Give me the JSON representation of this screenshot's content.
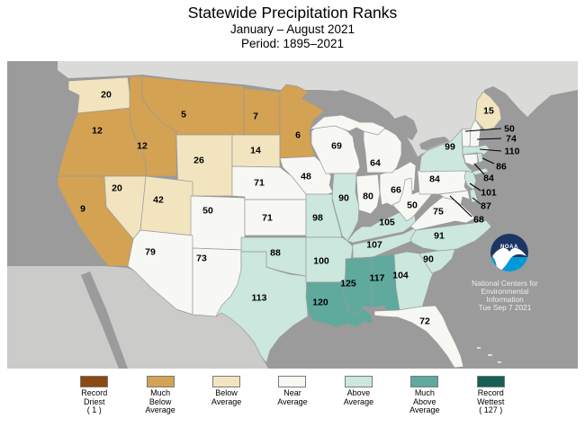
{
  "header": {
    "title": "Statewide Precipitation Ranks",
    "subtitle": "January – August 2021",
    "period": "Period: 1895–2021"
  },
  "colors": {
    "record_driest": "#8A4A10",
    "much_below": "#D3A253",
    "below": "#F2E4BE",
    "near": "#F7F7F4",
    "above": "#CBE7DE",
    "much_above": "#5FAA9C",
    "record_wettest": "#156156",
    "ocean": "#9B9B9B",
    "canada": "#DADAD8",
    "mexico": "#CBCBC9",
    "border": "#9A9A9A",
    "callout_line": "#000000"
  },
  "legend": {
    "items": [
      {
        "category": "record_driest",
        "color": "#8A4A10",
        "label_lines": [
          "Record",
          "Driest",
          "( 1 )"
        ]
      },
      {
        "category": "much_below",
        "color": "#D3A253",
        "label_lines": [
          "Much",
          "Below",
          "Average"
        ]
      },
      {
        "category": "below",
        "color": "#F2E4BE",
        "label_lines": [
          "Below",
          "Average"
        ]
      },
      {
        "category": "near",
        "color": "#F7F7F4",
        "label_lines": [
          "Near",
          "Average"
        ]
      },
      {
        "category": "above",
        "color": "#CBE7DE",
        "label_lines": [
          "Above",
          "Average"
        ]
      },
      {
        "category": "much_above",
        "color": "#5FAA9C",
        "label_lines": [
          "Much",
          "Above",
          "Average"
        ]
      },
      {
        "category": "record_wettest",
        "color": "#156156",
        "label_lines": [
          "Record",
          "Wettest",
          "( 127 )"
        ]
      }
    ]
  },
  "logo": {
    "acronym": "NOAA",
    "lines": [
      "National Centers for",
      "Environmental",
      "Information",
      "Tue Sep 7 2021"
    ]
  },
  "map": {
    "states": {
      "WA": {
        "name": "Washington",
        "rank": 20,
        "category": "below"
      },
      "OR": {
        "name": "Oregon",
        "rank": 12,
        "category": "much_below"
      },
      "CA": {
        "name": "California",
        "rank": 9,
        "category": "much_below"
      },
      "NV": {
        "name": "Nevada",
        "rank": 20,
        "category": "below"
      },
      "ID": {
        "name": "Idaho",
        "rank": 12,
        "category": "much_below"
      },
      "MT": {
        "name": "Montana",
        "rank": 5,
        "category": "much_below"
      },
      "WY": {
        "name": "Wyoming",
        "rank": 26,
        "category": "below"
      },
      "UT": {
        "name": "Utah",
        "rank": 42,
        "category": "below"
      },
      "CO": {
        "name": "Colorado",
        "rank": 50,
        "category": "near"
      },
      "AZ": {
        "name": "Arizona",
        "rank": 79,
        "category": "near"
      },
      "NM": {
        "name": "New Mexico",
        "rank": 73,
        "category": "near"
      },
      "ND": {
        "name": "North Dakota",
        "rank": 7,
        "category": "much_below"
      },
      "SD": {
        "name": "South Dakota",
        "rank": 14,
        "category": "below"
      },
      "NE": {
        "name": "Nebraska",
        "rank": 71,
        "category": "near"
      },
      "KS": {
        "name": "Kansas",
        "rank": 71,
        "category": "near"
      },
      "OK": {
        "name": "Oklahoma",
        "rank": 88,
        "category": "above"
      },
      "TX": {
        "name": "Texas",
        "rank": 113,
        "category": "above"
      },
      "MN": {
        "name": "Minnesota",
        "rank": 6,
        "category": "much_below"
      },
      "IA": {
        "name": "Iowa",
        "rank": 48,
        "category": "near"
      },
      "MO": {
        "name": "Missouri",
        "rank": 98,
        "category": "above"
      },
      "AR": {
        "name": "Arkansas",
        "rank": 100,
        "category": "above"
      },
      "LA": {
        "name": "Louisiana",
        "rank": 120,
        "category": "much_above"
      },
      "WI": {
        "name": "Wisconsin",
        "rank": 69,
        "category": "near"
      },
      "IL": {
        "name": "Illinois",
        "rank": 90,
        "category": "above"
      },
      "MS": {
        "name": "Mississippi",
        "rank": 125,
        "category": "much_above"
      },
      "MI": {
        "name": "Michigan",
        "rank": 64,
        "category": "near"
      },
      "IN": {
        "name": "Indiana",
        "rank": 80,
        "category": "near"
      },
      "OH": {
        "name": "Ohio",
        "rank": 66,
        "category": "near"
      },
      "KY": {
        "name": "Kentucky",
        "rank": 105,
        "category": "above"
      },
      "TN": {
        "name": "Tennessee",
        "rank": 107,
        "category": "above"
      },
      "AL": {
        "name": "Alabama",
        "rank": 117,
        "category": "much_above"
      },
      "GA": {
        "name": "Georgia",
        "rank": 104,
        "category": "above"
      },
      "FL": {
        "name": "Florida",
        "rank": 72,
        "category": "near"
      },
      "SC": {
        "name": "South Carolina",
        "rank": 90,
        "category": "above"
      },
      "NC": {
        "name": "North Carolina",
        "rank": 91,
        "category": "above"
      },
      "VA": {
        "name": "Virginia",
        "rank": 75,
        "category": "near"
      },
      "WV": {
        "name": "West Virginia",
        "rank": 50,
        "category": "near"
      },
      "PA": {
        "name": "Pennsylvania",
        "rank": 84,
        "category": "near"
      },
      "NY": {
        "name": "New York",
        "rank": 99,
        "category": "above"
      },
      "ME": {
        "name": "Maine",
        "rank": 15,
        "category": "below"
      },
      "VT": {
        "name": "Vermont",
        "rank": 50,
        "category": "near"
      },
      "NH": {
        "name": "New Hampshire",
        "rank": 74,
        "category": "near"
      },
      "MA": {
        "name": "Massachusetts",
        "rank": 110,
        "category": "above"
      },
      "RI": {
        "name": "Rhode Island",
        "rank": 86,
        "category": "above"
      },
      "CT": {
        "name": "Connecticut",
        "rank": 84,
        "category": "near"
      },
      "NJ": {
        "name": "New Jersey",
        "rank": 101,
        "category": "above"
      },
      "DE": {
        "name": "Delaware",
        "rank": 87,
        "category": "above"
      },
      "MD": {
        "name": "Maryland",
        "rank": 68,
        "category": "near"
      }
    },
    "callouts": [
      {
        "state": "VT",
        "rank": 50
      },
      {
        "state": "NH",
        "rank": 74
      },
      {
        "state": "MA",
        "rank": 110
      },
      {
        "state": "RI",
        "rank": 86
      },
      {
        "state": "CT",
        "rank": 84
      },
      {
        "state": "NJ",
        "rank": 101
      },
      {
        "state": "DE",
        "rank": 87
      },
      {
        "state": "MD",
        "rank": 68
      }
    ]
  }
}
